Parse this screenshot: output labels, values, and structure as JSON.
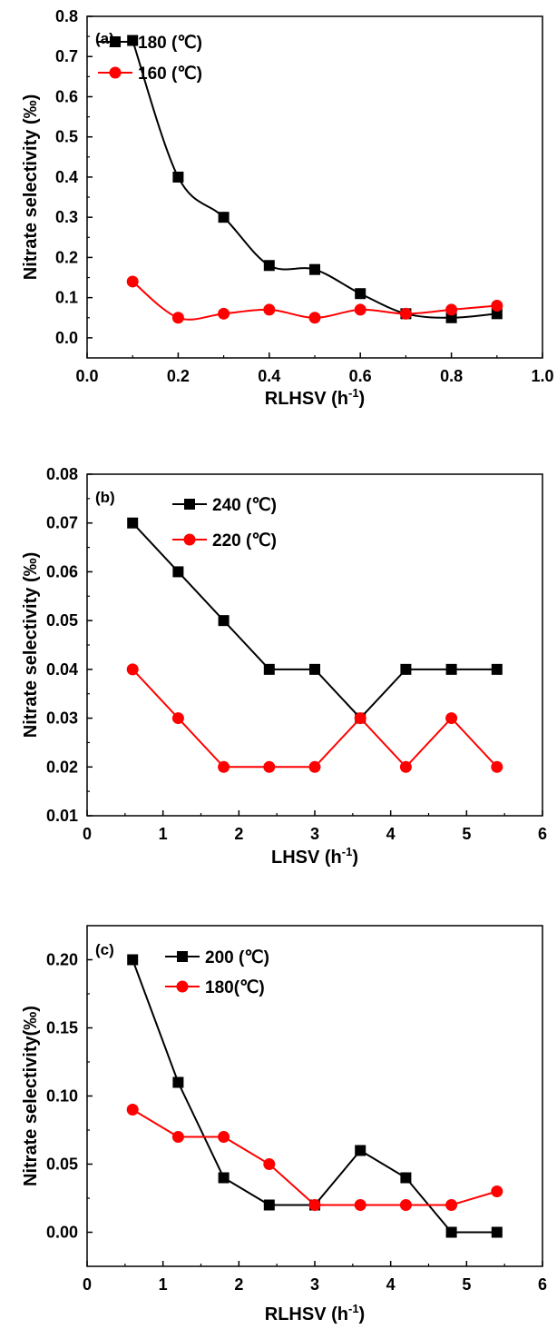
{
  "colors": {
    "black_series": "#000000",
    "red_series": "#ff0000",
    "axis": "#000000",
    "background": "#ffffff"
  },
  "chart_data": [
    {
      "panel": "(a)",
      "type": "line",
      "curve": "smooth",
      "xlabel": "RLHSV (h",
      "xlabel_sup": "-1",
      "xlabel_close": ")",
      "ylabel": "Nitrate selectivity (‰)",
      "xlim": [
        0.0,
        1.0
      ],
      "ylim": [
        -0.05,
        0.8
      ],
      "xticks": [
        "0.0",
        "0.2",
        "0.4",
        "0.6",
        "0.8",
        "1.0"
      ],
      "xtick_values": [
        0.0,
        0.2,
        0.4,
        0.6,
        0.8,
        1.0
      ],
      "yticks": [
        "0.0",
        "0.1",
        "0.2",
        "0.3",
        "0.4",
        "0.5",
        "0.6",
        "0.7",
        "0.8"
      ],
      "ytick_values": [
        0.0,
        0.1,
        0.2,
        0.3,
        0.4,
        0.5,
        0.6,
        0.7,
        0.8
      ],
      "legend_position": "top-left",
      "series": [
        {
          "name": "180 (℃)",
          "color": "#000000",
          "marker": "square",
          "x": [
            0.1,
            0.2,
            0.3,
            0.4,
            0.5,
            0.6,
            0.7,
            0.8,
            0.9
          ],
          "values": [
            0.74,
            0.4,
            0.3,
            0.18,
            0.17,
            0.11,
            0.06,
            0.05,
            0.06
          ]
        },
        {
          "name": "160 (℃)",
          "color": "#ff0000",
          "marker": "circle",
          "x": [
            0.1,
            0.2,
            0.3,
            0.4,
            0.5,
            0.6,
            0.7,
            0.8,
            0.9
          ],
          "values": [
            0.14,
            0.05,
            0.06,
            0.07,
            0.05,
            0.07,
            0.06,
            0.07,
            0.08
          ]
        }
      ]
    },
    {
      "panel": "(b)",
      "type": "line",
      "curve": "straight",
      "xlabel": "LHSV (h",
      "xlabel_sup": "-1",
      "xlabel_close": ")",
      "ylabel": "Nitrate selectivity (‰)",
      "xlim": [
        0,
        6
      ],
      "ylim": [
        0.01,
        0.08
      ],
      "xticks": [
        "0",
        "1",
        "2",
        "3",
        "4",
        "5",
        "6"
      ],
      "xtick_values": [
        0,
        1,
        2,
        3,
        4,
        5,
        6
      ],
      "yticks": [
        "0.01",
        "0.02",
        "0.03",
        "0.04",
        "0.05",
        "0.06",
        "0.07",
        "0.08"
      ],
      "ytick_values": [
        0.01,
        0.02,
        0.03,
        0.04,
        0.05,
        0.06,
        0.07,
        0.08
      ],
      "legend_position": "top-left",
      "series": [
        {
          "name": "240 (℃)",
          "color": "#000000",
          "marker": "square",
          "x": [
            0.6,
            1.2,
            1.8,
            2.4,
            3.0,
            3.6,
            4.2,
            4.8,
            5.4
          ],
          "values": [
            0.07,
            0.06,
            0.05,
            0.04,
            0.04,
            0.03,
            0.04,
            0.04,
            0.04
          ]
        },
        {
          "name": "220 (℃)",
          "color": "#ff0000",
          "marker": "circle",
          "x": [
            0.6,
            1.2,
            1.8,
            2.4,
            3.0,
            3.6,
            4.2,
            4.8,
            5.4
          ],
          "values": [
            0.04,
            0.03,
            0.02,
            0.02,
            0.02,
            0.03,
            0.02,
            0.03,
            0.02
          ]
        }
      ]
    },
    {
      "panel": "(c)",
      "type": "line",
      "curve": "straight",
      "xlabel": "RLHSV (h",
      "xlabel_sup": "-1",
      "xlabel_close": ")",
      "ylabel": "Nitrate selectivity(‰)",
      "xlim": [
        0,
        6
      ],
      "ylim": [
        -0.025,
        0.225
      ],
      "xticks": [
        "0",
        "1",
        "2",
        "3",
        "4",
        "5",
        "6"
      ],
      "xtick_values": [
        0,
        1,
        2,
        3,
        4,
        5,
        6
      ],
      "yticks": [
        "0.00",
        "0.05",
        "0.10",
        "0.15",
        "0.20"
      ],
      "ytick_values": [
        0.0,
        0.05,
        0.1,
        0.15,
        0.2
      ],
      "legend_position": "top-left",
      "series": [
        {
          "name": "200 (℃)",
          "color": "#000000",
          "marker": "square",
          "x": [
            0.6,
            1.2,
            1.8,
            2.4,
            3.0,
            3.6,
            4.2,
            4.8,
            5.4
          ],
          "values": [
            0.2,
            0.11,
            0.04,
            0.02,
            0.02,
            0.06,
            0.04,
            0.0,
            0.0
          ]
        },
        {
          "name": "180(℃)",
          "color": "#ff0000",
          "marker": "circle",
          "x": [
            0.6,
            1.2,
            1.8,
            2.4,
            3.0,
            3.6,
            4.2,
            4.8,
            5.4
          ],
          "values": [
            0.09,
            0.07,
            0.07,
            0.05,
            0.02,
            0.02,
            0.02,
            0.02,
            0.03
          ]
        }
      ]
    }
  ]
}
